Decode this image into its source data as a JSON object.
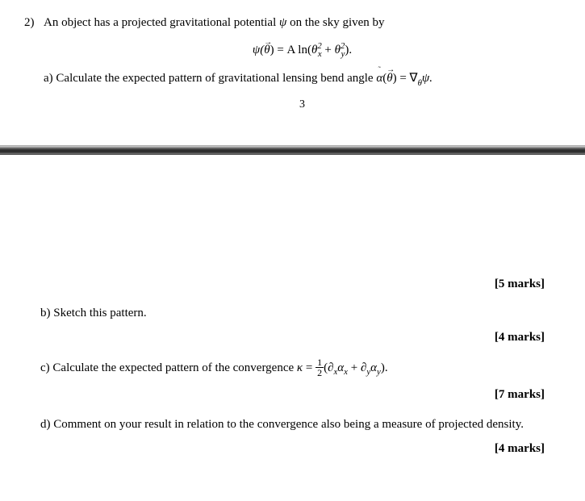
{
  "question": {
    "number": "2)",
    "intro_a": "An object has a projected gravitational potential ",
    "intro_b": " on the sky given by",
    "psi": "ψ",
    "equation1_pre": "ψ(",
    "theta_sym": "θ",
    "equation1_mid": ") = A ln(",
    "equation1_post": ").",
    "ln_inner_x_base": "θ",
    "ln_inner_x_sup": "2",
    "ln_inner_x_sub": "x",
    "plus": " + ",
    "ln_inner_y_base": "θ",
    "ln_inner_y_sup": "2",
    "ln_inner_y_sub": "y",
    "A": "A",
    "partA_pre": "a) Calculate the expected pattern of gravitational lensing bend angle ",
    "alpha_vec": "α",
    "tilde": "˜",
    "partA_mid1": "(",
    "partA_mid2": ") = ∇",
    "nabla_sub": "θ",
    "partA_post": "ψ.",
    "pagecount": "3",
    "partA_marks": "[5 marks]",
    "partB": "b) Sketch this pattern.",
    "partB_marks": "[4 marks]",
    "partC_pre": "c) Calculate the expected pattern of the convergence ",
    "kappa": "κ",
    "eq": " = ",
    "half_num": "1",
    "half_den": "2",
    "lpar": "(",
    "dxax_d": "∂",
    "dxax_x": "x",
    "dxax_a": "α",
    "dyay_y": "y",
    "rpar": ").",
    "partC_marks": "[7 marks]",
    "partD": "d) Comment on your result in relation to the convergence also being a measure of projected density.",
    "partD_marks": "[4 marks]"
  }
}
